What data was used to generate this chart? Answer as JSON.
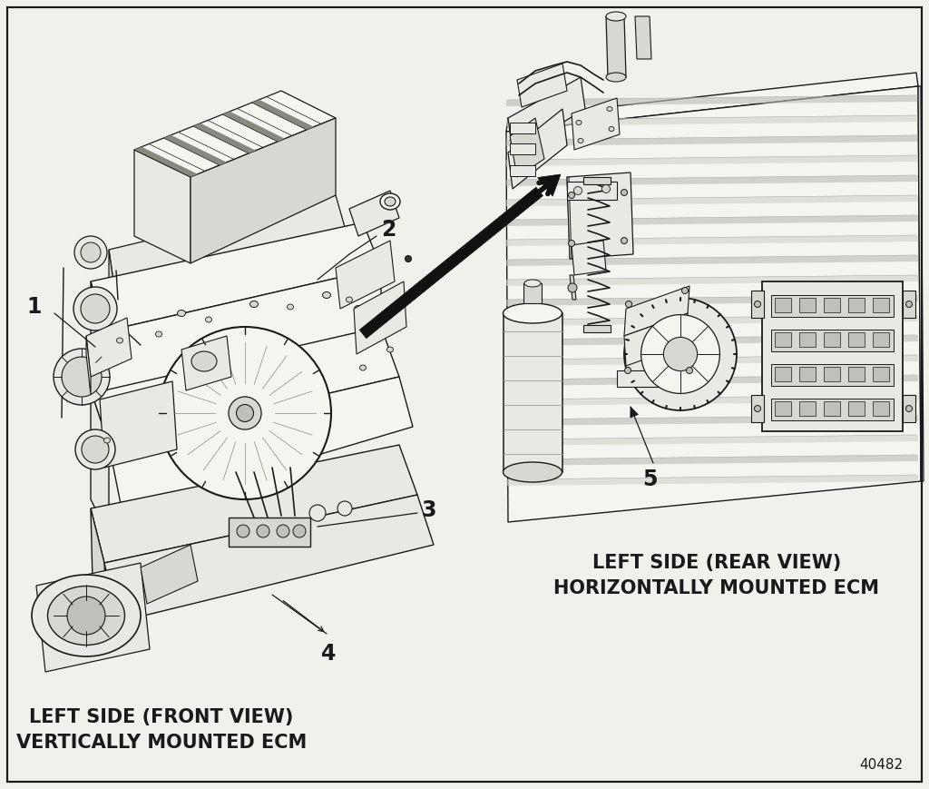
{
  "bg_color": "#f0f0ec",
  "border_color": "#000000",
  "label1": "1",
  "label2": "2",
  "label3": "3",
  "label4": "4",
  "label5": "5",
  "caption_left_line1": "LEFT SIDE (FRONT VIEW)",
  "caption_left_line2": "VERTICALLY MOUNTED ECM",
  "caption_right_line1": "LEFT SIDE (REAR VIEW)",
  "caption_right_line2": "HORIZONTALLY MOUNTED ECM",
  "diagram_number": "40482",
  "line_color": "#1a1a1a",
  "fill_light": "#e8e8e4",
  "fill_mid": "#d8d8d2",
  "fill_dark": "#c0c0ba",
  "fill_white": "#f4f4f0",
  "font_size_labels": 17,
  "font_size_caption": 13,
  "font_size_diagram_num": 11,
  "arrow_color": "#111111"
}
